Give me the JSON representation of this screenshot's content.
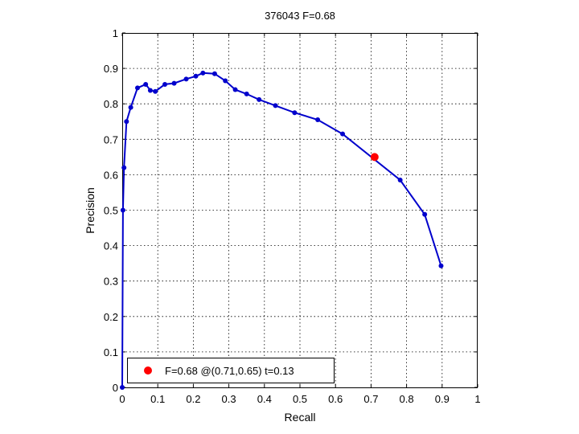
{
  "chart_data": {
    "type": "line",
    "title": "376043 F=0.68",
    "xlabel": "Recall",
    "ylabel": "Precision",
    "xlim": [
      0,
      1
    ],
    "ylim": [
      0,
      1
    ],
    "xticks": [
      "0",
      "0.1",
      "0.2",
      "0.3",
      "0.4",
      "0.5",
      "0.6",
      "0.7",
      "0.8",
      "0.9",
      "1"
    ],
    "yticks": [
      "0",
      "0.1",
      "0.2",
      "0.3",
      "0.4",
      "0.5",
      "0.6",
      "0.7",
      "0.8",
      "0.9",
      "1"
    ],
    "grid": true,
    "line_color": "#0000cc",
    "highlight_color": "#ff0000",
    "series": [
      {
        "x": [
          0.0,
          0.002,
          0.005,
          0.012,
          0.024,
          0.043,
          0.066,
          0.079,
          0.093,
          0.12,
          0.146,
          0.18,
          0.207,
          0.227,
          0.26,
          0.29,
          0.318,
          0.35,
          0.385,
          0.431,
          0.485,
          0.55,
          0.62,
          0.782,
          0.851,
          0.897
        ],
        "y": [
          0.0,
          0.5,
          0.62,
          0.75,
          0.79,
          0.845,
          0.855,
          0.838,
          0.835,
          0.855,
          0.858,
          0.87,
          0.878,
          0.887,
          0.885,
          0.865,
          0.84,
          0.828,
          0.812,
          0.795,
          0.775,
          0.755,
          0.715,
          0.585,
          0.488,
          0.343
        ]
      }
    ],
    "highlight": {
      "x": 0.71,
      "y": 0.65
    },
    "legend": {
      "position": "bottom-left",
      "text": "F=0.68 @(0.71,0.65) t=0.13"
    }
  }
}
